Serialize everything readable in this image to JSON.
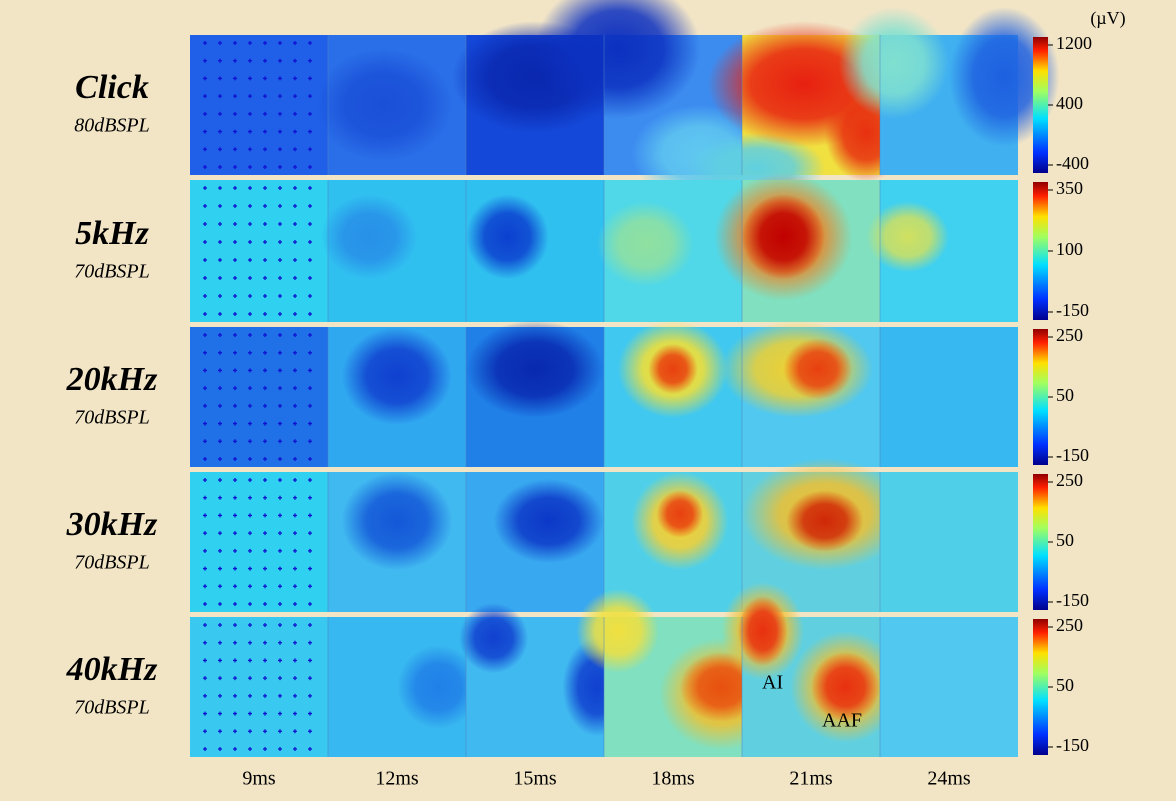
{
  "unit": "(µV)",
  "rows": [
    {
      "stimulus": "Click",
      "level": "80dBSPL",
      "scale": [
        1200,
        400,
        -400
      ]
    },
    {
      "stimulus": "5kHz",
      "level": "70dBSPL",
      "scale": [
        350,
        100,
        -150
      ]
    },
    {
      "stimulus": "20kHz",
      "level": "70dBSPL",
      "scale": [
        250,
        50,
        -150
      ]
    },
    {
      "stimulus": "30kHz",
      "level": "70dBSPL",
      "scale": [
        250,
        50,
        -150
      ]
    },
    {
      "stimulus": "40kHz",
      "level": "70dBSPL",
      "scale": [
        250,
        50,
        -150
      ]
    }
  ],
  "columns": [
    "9ms",
    "12ms",
    "15ms",
    "18ms",
    "21ms",
    "24ms"
  ],
  "annotations": [
    "AI",
    "AAF"
  ]
}
